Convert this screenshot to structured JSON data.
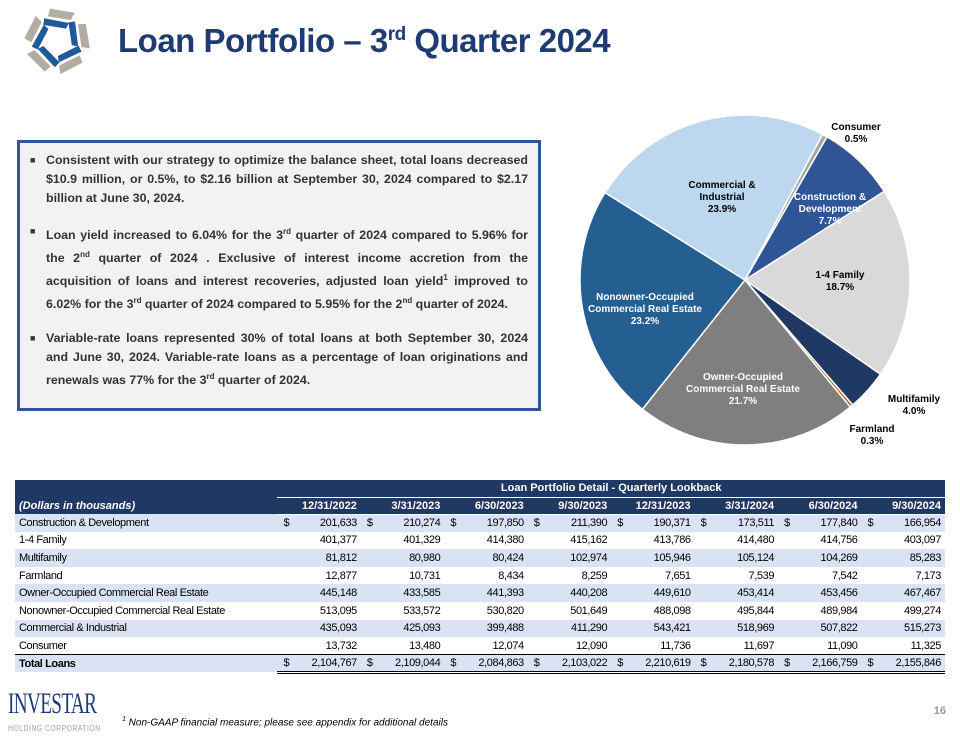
{
  "header": {
    "title_main": "Loan Portfolio – 3",
    "title_sup": "rd",
    "title_end": " Quarter 2024"
  },
  "panel": {
    "bullets": [
      {
        "parts": [
          "Consistent with our strategy to optimize the balance sheet, total loans decreased $10.9 million, or 0.5%, to $2.16 billion at September 30, 2024 compared to $2.17 billion at June 30, 2024."
        ]
      },
      {
        "parts": [
          "Loan yield increased to 6.04% for the 3",
          "rd",
          " quarter of 2024 compared to 5.96% for the 2",
          "nd",
          " quarter of 2024 . Exclusive of interest income accretion from the acquisition of loans and interest recoveries, adjusted loan yield",
          "1",
          " improved to 6.02% for the 3",
          "rd",
          " quarter of 2024 compared to 5.95% for the 2",
          "nd",
          " quarter of 2024."
        ]
      },
      {
        "parts": [
          "Variable-rate loans represented 30% of total loans at both September 30, 2024 and June 30, 2024. Variable-rate loans as a percentage of loan originations and renewals was 77% for the 3",
          "rd",
          " quarter of 2024."
        ]
      }
    ]
  },
  "chart_data": {
    "type": "pie",
    "slices": [
      {
        "label": "Consumer",
        "value": 0.5,
        "display": "0.5%",
        "color": "#a6a6a6"
      },
      {
        "label": "Construction & Development",
        "value": 7.7,
        "display": "7.7%",
        "color": "#2f5597"
      },
      {
        "label": "1-4 Family",
        "value": 18.7,
        "display": "18.7%",
        "color": "#d9d9d9"
      },
      {
        "label": "Multifamily",
        "value": 4.0,
        "display": "4.0%",
        "color": "#1f3864"
      },
      {
        "label": "Farmland",
        "value": 0.3,
        "display": "0.3%",
        "color": "#c55a11"
      },
      {
        "label": "Owner-Occupied Commercial Real Estate",
        "value": 21.7,
        "display": "21.7%",
        "color": "#7f7f7f"
      },
      {
        "label": "Nonowner-Occupied Commercial Real Estate",
        "value": 23.2,
        "display": "23.2%",
        "color": "#255e91"
      },
      {
        "label": "Commercial & Industrial",
        "value": 23.9,
        "display": "23.9%",
        "color": "#bdd7ee"
      }
    ]
  },
  "table": {
    "title": "Loan Portfolio Detail - Quarterly Lookback",
    "unit_label": "(Dollars in thousands)",
    "columns": [
      "12/31/2022",
      "3/31/2023",
      "6/30/2023",
      "9/30/2023",
      "12/31/2023",
      "3/31/2024",
      "6/30/2024",
      "9/30/2024"
    ],
    "currency": "$",
    "rows": [
      {
        "label": "Construction & Development",
        "values": [
          "201,633",
          "210,274",
          "197,850",
          "211,390",
          "190,371",
          "173,511",
          "177,840",
          "166,954"
        ]
      },
      {
        "label": "1-4 Family",
        "values": [
          "401,377",
          "401,329",
          "414,380",
          "415,162",
          "413,786",
          "414,480",
          "414,756",
          "403,097"
        ]
      },
      {
        "label": "Multifamily",
        "values": [
          "81,812",
          "80,980",
          "80,424",
          "102,974",
          "105,946",
          "105,124",
          "104,269",
          "85,283"
        ]
      },
      {
        "label": "Farmland",
        "values": [
          "12,877",
          "10,731",
          "8,434",
          "8,259",
          "7,651",
          "7,539",
          "7,542",
          "7,173"
        ]
      },
      {
        "label": "Owner-Occupied Commercial Real Estate",
        "values": [
          "445,148",
          "433,585",
          "441,393",
          "440,208",
          "449,610",
          "453,414",
          "453,456",
          "467,467"
        ]
      },
      {
        "label": "Nonowner-Occupied Commercial Real Estate",
        "values": [
          "513,095",
          "533,572",
          "530,820",
          "501,649",
          "488,098",
          "495,844",
          "489,984",
          "499,274"
        ]
      },
      {
        "label": "Commercial & Industrial",
        "values": [
          "435,093",
          "425,093",
          "399,488",
          "411,290",
          "543,421",
          "518,969",
          "507,822",
          "515,273"
        ]
      },
      {
        "label": "Consumer",
        "values": [
          "13,732",
          "13,480",
          "12,074",
          "12,090",
          "11,736",
          "11,697",
          "11,090",
          "11,325"
        ]
      },
      {
        "label": "Total Loans",
        "values": [
          "2,104,767",
          "2,109,044",
          "2,084,863",
          "2,103,022",
          "2,210,619",
          "2,180,578",
          "2,166,759",
          "2,155,846"
        ]
      }
    ]
  },
  "footer": {
    "logo_text": "INVESTAR",
    "logo_sub": "HOLDING CORPORATION",
    "footnote_mark": "1",
    "footnote": " Non-GAAP financial measure;  please  see  appendix  for additional  details",
    "page": "16"
  }
}
